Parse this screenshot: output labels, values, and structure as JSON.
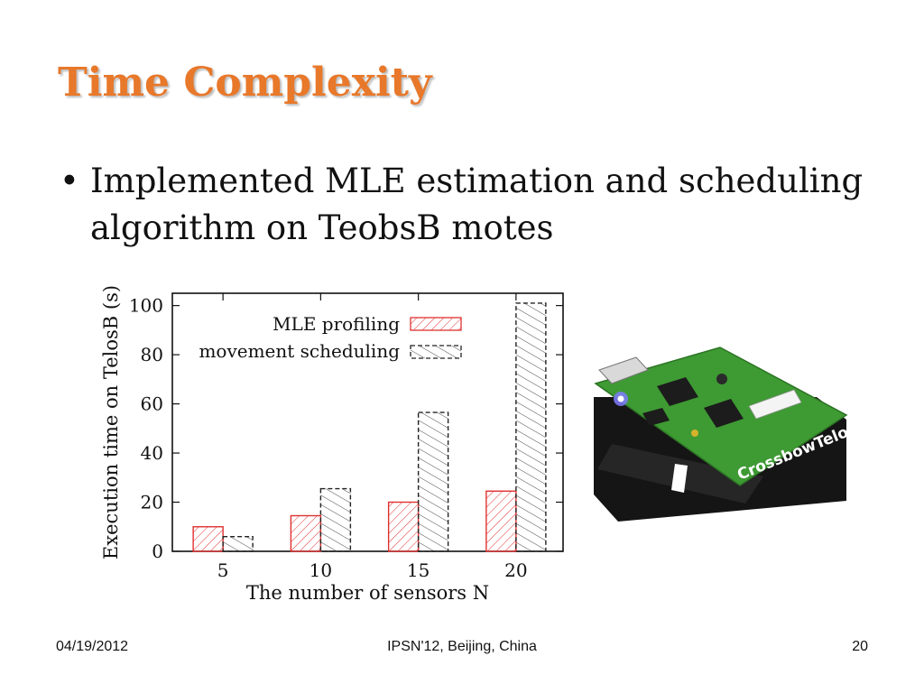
{
  "slide": {
    "title": "Time Complexity",
    "bullets": [
      "Implemented MLE estimation and scheduling algorithm on TeobsB motes"
    ]
  },
  "footer": {
    "date": "04/19/2012",
    "venue": "IPSN'12, Beijing, China",
    "page": "20"
  },
  "mote_image": {
    "label": "CrossbowTelos"
  },
  "chart_data": {
    "type": "bar",
    "categories": [
      "5",
      "10",
      "15",
      "20"
    ],
    "series": [
      {
        "name": "MLE profiling",
        "values": [
          10,
          14.5,
          20,
          24.5
        ],
        "color": "#e03030"
      },
      {
        "name": "movement scheduling",
        "values": [
          6,
          25.5,
          56.5,
          101
        ],
        "color": "#222222"
      }
    ],
    "xlabel": "The number of sensors N",
    "ylabel": "Execution time on TelosB (s)",
    "yticks": [
      0,
      20,
      40,
      60,
      80,
      100
    ],
    "ylim": [
      0,
      105
    ],
    "legend": "top-right",
    "grid": false
  }
}
